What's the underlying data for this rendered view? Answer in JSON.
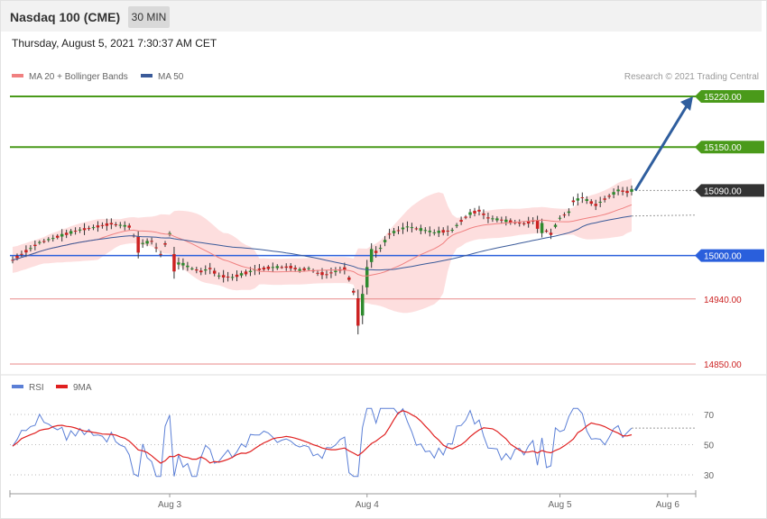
{
  "header": {
    "title": "Nasdaq 100 (CME)",
    "timeframe": "30 MIN"
  },
  "date_line": "Thursday, August 5, 2021 7:30:37 AM CET",
  "legend": {
    "ma20_label": "MA 20 + Bollinger Bands",
    "ma50_label": "MA 50",
    "credit": "Research © 2021 Trading Central"
  },
  "rsi_legend": {
    "rsi_label": "RSI",
    "ma_label": "9MA"
  },
  "colors": {
    "bull": "#2e8b2e",
    "bear": "#cc2222",
    "band": "#fdd8d8",
    "ma20": "#f08080",
    "ma50": "#3a5a99",
    "resistance": "#4a9a1a",
    "pivot": "#2a5fdc",
    "support": "#e88a8a",
    "arrow": "#2f5e9e",
    "rsi": "#5b7fd6",
    "rsi_ma": "#e02020"
  },
  "chart_data": [
    {
      "type": "candlestick",
      "title": "Nasdaq 100 (CME)",
      "ylim": [
        14850,
        15225
      ],
      "x_tick_labels": [
        "Aug 3",
        "Aug 4",
        "Aug 5",
        "Aug 6"
      ],
      "levels": [
        {
          "name": "resistance-2",
          "value": 15220.0,
          "label": "15220.00",
          "kind": "resistance"
        },
        {
          "name": "resistance-1",
          "value": 15150.0,
          "label": "15150.00",
          "kind": "resistance"
        },
        {
          "name": "last-price",
          "value": 15090.0,
          "label": "15090.00",
          "kind": "last"
        },
        {
          "name": "pivot",
          "value": 15000.0,
          "label": "15000.00",
          "kind": "pivot"
        },
        {
          "name": "support-1",
          "value": 14940.0,
          "label": "14940.00",
          "kind": "support"
        },
        {
          "name": "support-2",
          "value": 14850.0,
          "label": "14850.00",
          "kind": "support"
        }
      ],
      "forecast_arrow": {
        "from": 15090,
        "to": 15220
      },
      "series": [
        {
          "name": "MA 20 + Bollinger Bands"
        },
        {
          "name": "MA 50"
        }
      ]
    },
    {
      "type": "line",
      "ylim": [
        25,
        80
      ],
      "y_ticks": [
        70,
        50,
        30
      ],
      "y_tick_labels": [
        "70",
        "50",
        "30"
      ],
      "series": [
        {
          "name": "RSI"
        },
        {
          "name": "9MA"
        }
      ]
    }
  ]
}
